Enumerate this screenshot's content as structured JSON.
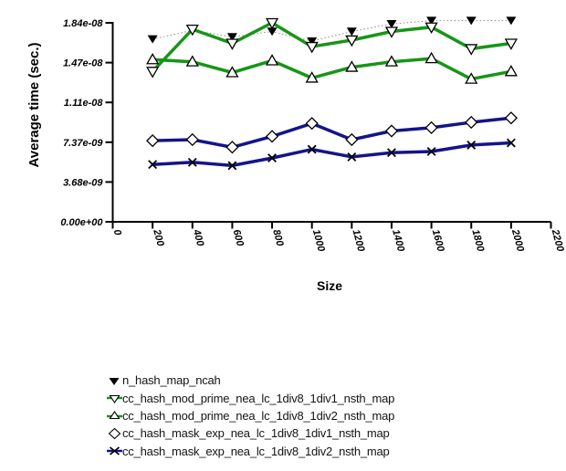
{
  "chart_data": {
    "type": "line",
    "title": "",
    "xlabel": "Size",
    "ylabel": "Average time (sec.)",
    "grid": false,
    "legend_position": "below-chart",
    "xlim": [
      0,
      2200
    ],
    "ylim": [
      0,
      1.84e-08
    ],
    "x_ticks": [
      0,
      200,
      400,
      600,
      800,
      1000,
      1200,
      1400,
      1600,
      1800,
      2000,
      2200
    ],
    "x_tick_labels": [
      "0",
      "200",
      "400",
      "600",
      "800",
      "1000",
      "1200",
      "1400",
      "1600",
      "1800",
      "2000",
      "2200"
    ],
    "y_tick_labels": [
      "0.00e+00",
      "3.68e-09",
      "7.37e-09",
      "1.11e-08",
      "1.47e-08",
      "1.84e-08"
    ],
    "x": [
      200,
      400,
      600,
      800,
      1000,
      1200,
      1400,
      1600,
      1800,
      2000
    ],
    "series": [
      {
        "label": "n_hash_map_ncah",
        "marker": "triangle-down-filled",
        "marker_color": "#000000",
        "line_color": "#8c8c8c",
        "line_style": "dotted",
        "line_width": 1,
        "values": [
          1.69e-08,
          1.77e-08,
          1.71e-08,
          1.76e-08,
          1.67e-08,
          1.76e-08,
          1.83e-08,
          1.86e-08,
          1.86e-08,
          1.86e-08
        ]
      },
      {
        "label": "cc_hash_mod_prime_nea_lc_1div8_1div1_nsth_map",
        "marker": "triangle-down-open",
        "marker_color": "#000000",
        "line_color": "#169616",
        "line_style": "solid",
        "line_width": 3.5,
        "values": [
          1.39e-08,
          1.78e-08,
          1.65e-08,
          1.84e-08,
          1.62e-08,
          1.68e-08,
          1.76e-08,
          1.8e-08,
          1.6e-08,
          1.65e-08
        ]
      },
      {
        "label": "cc_hash_mod_prime_nea_lc_1div8_1div2_nsth_map",
        "marker": "triangle-up-open",
        "marker_color": "#000000",
        "line_color": "#169616",
        "line_style": "solid",
        "line_width": 3.5,
        "values": [
          1.5e-08,
          1.48e-08,
          1.38e-08,
          1.49e-08,
          1.33e-08,
          1.43e-08,
          1.48e-08,
          1.51e-08,
          1.32e-08,
          1.39e-08
        ]
      },
      {
        "label": "cc_hash_mask_exp_nea_lc_1div8_1div1_nsth_map",
        "marker": "diamond-open",
        "marker_color": "#000000",
        "line_color": "#14148c",
        "line_style": "solid",
        "line_width": 3.5,
        "values": [
          7.5e-09,
          7.6e-09,
          6.9e-09,
          7.9e-09,
          9.1e-09,
          7.6e-09,
          8.4e-09,
          8.7e-09,
          9.2e-09,
          9.6e-09
        ]
      },
      {
        "label": "cc_hash_mask_exp_nea_lc_1div8_1div2_nsth_map",
        "marker": "x-cross",
        "marker_color": "#000000",
        "line_color": "#14148c",
        "line_style": "solid",
        "line_width": 3.5,
        "values": [
          5.3e-09,
          5.5e-09,
          5.2e-09,
          5.9e-09,
          6.7e-09,
          6e-09,
          6.4e-09,
          6.5e-09,
          7.1e-09,
          7.3e-09
        ]
      }
    ]
  }
}
